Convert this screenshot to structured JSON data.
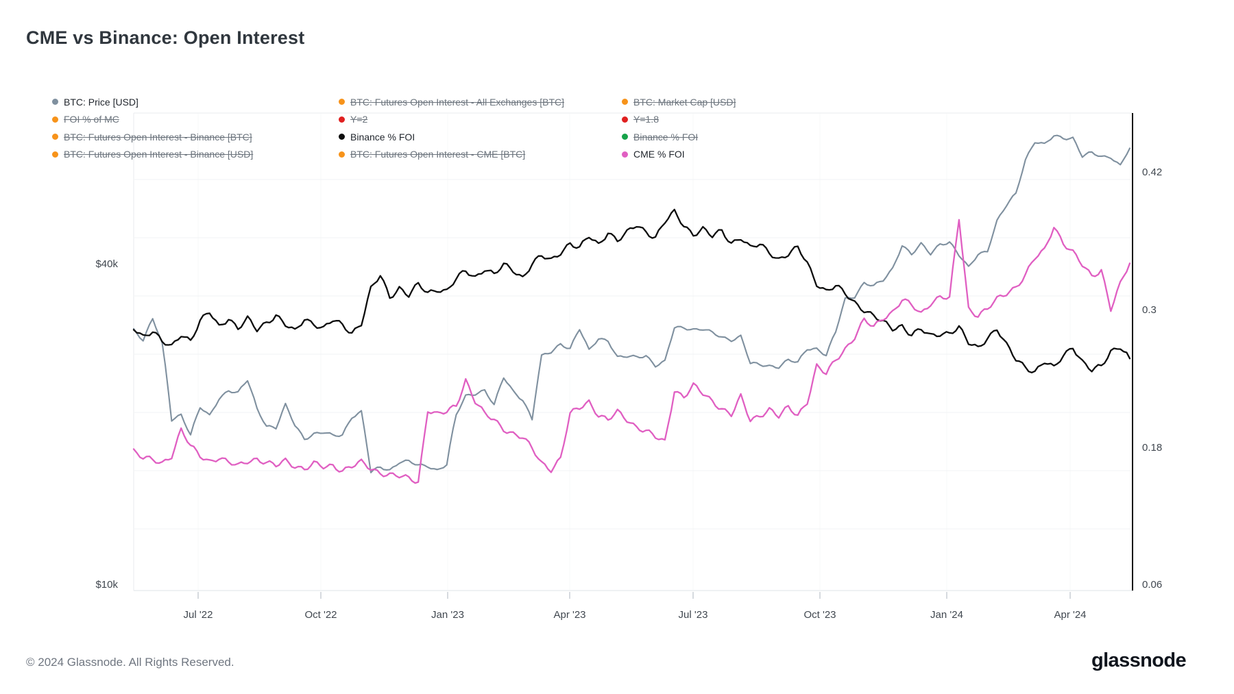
{
  "title": "CME vs Binance: Open Interest",
  "footer": {
    "copyright": "© 2024 Glassnode. All Rights Reserved.",
    "brand": "glassnode"
  },
  "colors": {
    "btc_price_line": "#7f909f",
    "binance_foi_line": "#0d0d0d",
    "cme_foi_line": "#e05fc2",
    "orange_swatch": "#f7931a",
    "red_swatch": "#e02020",
    "green_swatch": "#16a34a",
    "right_axis_line": "#0a0a0a",
    "gridline": "#f2f3f5"
  },
  "legend": {
    "items": [
      {
        "label": "BTC: Price [USD]",
        "color": "#7f909f",
        "struck": false
      },
      {
        "label": "BTC: Futures Open Interest - All Exchanges [BTC]",
        "color": "#f7931a",
        "struck": true
      },
      {
        "label": "BTC: Market Cap [USD]",
        "color": "#f7931a",
        "struck": true
      },
      {
        "label": "FOI % of MC",
        "color": "#f7931a",
        "struck": true
      },
      {
        "label": "Y=2",
        "color": "#e02020",
        "struck": true
      },
      {
        "label": "Y=1.8",
        "color": "#e02020",
        "struck": true
      },
      {
        "label": "BTC: Futures Open Interest - Binance [BTC]",
        "color": "#f7931a",
        "struck": true
      },
      {
        "label": "Binance % FOI",
        "color": "#0d0d0d",
        "struck": false
      },
      {
        "label": "Binance % FOI",
        "color": "#16a34a",
        "struck": true
      },
      {
        "label": "BTC: Futures Open Interest - Binance [USD]",
        "color": "#f7931a",
        "struck": true
      },
      {
        "label": "BTC: Futures Open Interest - CME [BTC]",
        "color": "#f7931a",
        "struck": true
      },
      {
        "label": "CME % FOI",
        "color": "#e05fc2",
        "struck": false
      }
    ]
  },
  "chart_data": {
    "type": "line",
    "title": "CME vs Binance: Open Interest",
    "x_axis": {
      "labels": [
        "Jul '22",
        "Oct '22",
        "Jan '23",
        "Apr '23",
        "Jul '23",
        "Oct '23",
        "Jan '24",
        "Apr '24"
      ],
      "span": "May 2022 - May 2024",
      "interval": "weekly samples"
    },
    "left_axis": {
      "type": "log",
      "unit": "USD",
      "labels": [
        "$40k",
        "$10k"
      ],
      "tick_values_usd": [
        40000,
        10000
      ]
    },
    "right_axis": {
      "labels": [
        "0.42",
        "0.3",
        "0.18",
        "0.06"
      ],
      "tick_values": [
        0.42,
        0.3,
        0.18,
        0.06
      ]
    },
    "grid": "faint horizontal",
    "legend_position": "top",
    "series": [
      {
        "name": "BTC: Price [USD]",
        "axis": "left",
        "color": "#7f909f",
        "unit": "USD thousands",
        "values": [
          30.3,
          29.0,
          31.7,
          28.4,
          20.5,
          21.0,
          19.2,
          21.6,
          20.8,
          22.5,
          23.3,
          23.0,
          24.3,
          21.5,
          20.0,
          19.8,
          21.8,
          20.0,
          18.9,
          19.3,
          19.4,
          19.1,
          19.2,
          20.8,
          21.2,
          16.3,
          16.7,
          16.5,
          17.1,
          17.1,
          16.8,
          16.8,
          16.5,
          16.9,
          20.9,
          22.7,
          23.0,
          23.3,
          21.8,
          24.6,
          23.2,
          22.4,
          20.5,
          26.9,
          27.5,
          28.5,
          27.9,
          30.3,
          27.6,
          29.2,
          28.9,
          26.8,
          26.9,
          26.9,
          27.1,
          25.9,
          26.3,
          30.5,
          30.6,
          30.3,
          30.3,
          29.8,
          29.3,
          29.0,
          29.4,
          26.1,
          26.0,
          25.9,
          25.8,
          26.5,
          26.2,
          27.9,
          27.9,
          27.1,
          29.9,
          34.5,
          35.0,
          37.1,
          36.5,
          37.4,
          39.4,
          43.7,
          41.9,
          43.7,
          42.0,
          43.9,
          44.2,
          41.7,
          39.5,
          42.0,
          42.6,
          48.3,
          51.7,
          54.5,
          63.2,
          68.3,
          67.2,
          69.9,
          69.4,
          69.4,
          64.0,
          64.9,
          63.9,
          64.0,
          61.5,
          66.3
        ]
      },
      {
        "name": "Binance % FOI",
        "axis": "right",
        "color": "#0d0d0d",
        "values": [
          0.285,
          0.278,
          0.282,
          0.272,
          0.268,
          0.28,
          0.274,
          0.29,
          0.298,
          0.286,
          0.294,
          0.284,
          0.292,
          0.283,
          0.29,
          0.296,
          0.287,
          0.281,
          0.293,
          0.289,
          0.284,
          0.291,
          0.287,
          0.281,
          0.289,
          0.318,
          0.33,
          0.312,
          0.32,
          0.313,
          0.322,
          0.315,
          0.319,
          0.317,
          0.327,
          0.334,
          0.329,
          0.337,
          0.331,
          0.339,
          0.335,
          0.329,
          0.341,
          0.347,
          0.343,
          0.351,
          0.359,
          0.354,
          0.364,
          0.357,
          0.369,
          0.361,
          0.367,
          0.374,
          0.369,
          0.364,
          0.377,
          0.385,
          0.374,
          0.367,
          0.371,
          0.364,
          0.369,
          0.359,
          0.364,
          0.354,
          0.357,
          0.351,
          0.345,
          0.349,
          0.354,
          0.341,
          0.324,
          0.317,
          0.321,
          0.314,
          0.307,
          0.301,
          0.295,
          0.289,
          0.284,
          0.287,
          0.279,
          0.283,
          0.277,
          0.28,
          0.281,
          0.285,
          0.271,
          0.267,
          0.277,
          0.284,
          0.269,
          0.257,
          0.251,
          0.247,
          0.255,
          0.249,
          0.261,
          0.269,
          0.255,
          0.247,
          0.251,
          0.265,
          0.269,
          0.258
        ]
      },
      {
        "name": "CME % FOI",
        "axis": "right",
        "color": "#e05fc2",
        "values": [
          0.178,
          0.171,
          0.169,
          0.167,
          0.174,
          0.196,
          0.181,
          0.173,
          0.169,
          0.172,
          0.167,
          0.164,
          0.169,
          0.171,
          0.167,
          0.164,
          0.169,
          0.165,
          0.162,
          0.166,
          0.163,
          0.165,
          0.161,
          0.164,
          0.167,
          0.162,
          0.159,
          0.157,
          0.155,
          0.153,
          0.151,
          0.214,
          0.209,
          0.211,
          0.217,
          0.24,
          0.221,
          0.209,
          0.204,
          0.197,
          0.193,
          0.189,
          0.179,
          0.167,
          0.162,
          0.171,
          0.209,
          0.215,
          0.221,
          0.209,
          0.204,
          0.211,
          0.205,
          0.199,
          0.195,
          0.189,
          0.185,
          0.231,
          0.225,
          0.234,
          0.227,
          0.221,
          0.215,
          0.209,
          0.224,
          0.204,
          0.209,
          0.214,
          0.207,
          0.215,
          0.209,
          0.221,
          0.251,
          0.244,
          0.257,
          0.267,
          0.277,
          0.291,
          0.285,
          0.294,
          0.299,
          0.309,
          0.304,
          0.297,
          0.307,
          0.312,
          0.31,
          0.38,
          0.302,
          0.296,
          0.301,
          0.309,
          0.315,
          0.321,
          0.331,
          0.345,
          0.352,
          0.374,
          0.359,
          0.35,
          0.339,
          0.33,
          0.336,
          0.301,
          0.322,
          0.341
        ]
      }
    ]
  }
}
